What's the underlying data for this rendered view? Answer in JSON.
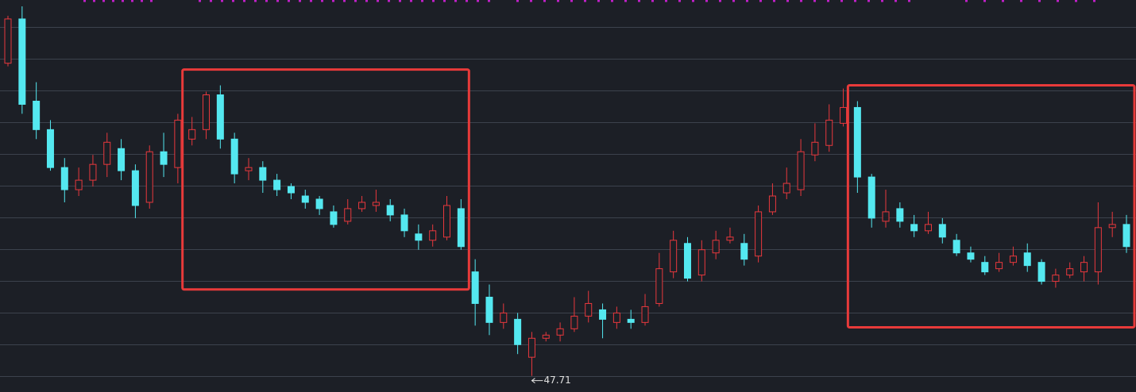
{
  "chart_data": {
    "type": "candlestick",
    "up_color": "#e8383d",
    "down_color": "#54e8f0",
    "ylim": [
      47.2,
      59.6
    ],
    "open": [
      57.6,
      59.0,
      56.4,
      55.5,
      54.3,
      53.6,
      53.9,
      54.4,
      54.9,
      54.2,
      53.2,
      54.8,
      54.3,
      55.2,
      55.5,
      56.6,
      55.2,
      54.2,
      54.3,
      53.9,
      53.7,
      53.4,
      53.3,
      52.9,
      52.6,
      53.0,
      53.1,
      53.1,
      52.8,
      52.2,
      52.0,
      52.1,
      53.0,
      51.0,
      50.2,
      49.4,
      49.5,
      48.3,
      48.9,
      49.0,
      49.2,
      49.6,
      49.8,
      49.4,
      49.5,
      49.4,
      50.0,
      51.0,
      51.9,
      50.9,
      51.6,
      52.0,
      51.9,
      51.5,
      52.9,
      53.5,
      53.6,
      54.7,
      55.0,
      55.7,
      56.2,
      54.0,
      52.6,
      53.0,
      52.5,
      52.3,
      52.5,
      52.0,
      51.6,
      51.3,
      51.1,
      51.3,
      51.6,
      51.3,
      50.7,
      50.9,
      51.0,
      51.0,
      52.4,
      52.5
    ],
    "high": [
      59.1,
      59.4,
      57.0,
      55.8,
      54.6,
      54.3,
      54.7,
      55.4,
      55.2,
      54.4,
      55.0,
      55.4,
      56.0,
      55.9,
      56.7,
      56.9,
      55.4,
      54.6,
      54.5,
      54.1,
      53.8,
      53.6,
      53.4,
      53.1,
      53.3,
      53.4,
      53.6,
      53.3,
      53.0,
      52.5,
      52.5,
      53.4,
      53.3,
      51.4,
      50.6,
      50.0,
      49.7,
      49.1,
      49.1,
      49.4,
      50.2,
      50.4,
      50.0,
      49.9,
      49.8,
      50.3,
      51.6,
      52.3,
      52.1,
      52.0,
      52.3,
      52.4,
      52.2,
      53.1,
      53.8,
      54.3,
      55.2,
      55.7,
      56.3,
      56.8,
      56.4,
      54.1,
      53.6,
      53.2,
      52.8,
      52.9,
      52.7,
      52.2,
      51.8,
      51.5,
      51.6,
      51.8,
      51.9,
      51.4,
      51.1,
      51.3,
      51.5,
      53.2,
      52.9,
      52.8
    ],
    "low": [
      57.5,
      56.0,
      55.2,
      54.2,
      53.2,
      53.4,
      53.7,
      54.0,
      53.9,
      52.7,
      53.0,
      54.0,
      53.8,
      55.0,
      55.2,
      54.9,
      53.8,
      53.9,
      53.5,
      53.4,
      53.3,
      53.0,
      52.8,
      52.4,
      52.5,
      52.9,
      52.9,
      52.6,
      52.1,
      51.7,
      51.8,
      52.0,
      51.7,
      49.3,
      49.0,
      49.2,
      48.4,
      47.71,
      48.8,
      48.8,
      49.1,
      49.4,
      48.9,
      49.2,
      49.2,
      49.3,
      49.9,
      50.8,
      50.7,
      50.7,
      51.4,
      51.9,
      51.2,
      51.3,
      52.8,
      53.3,
      53.4,
      54.5,
      54.8,
      55.6,
      53.5,
      52.4,
      52.4,
      52.4,
      52.1,
      52.2,
      51.9,
      51.5,
      51.3,
      50.9,
      51.0,
      51.2,
      51.0,
      50.6,
      50.5,
      50.8,
      50.7,
      50.6,
      52.1,
      51.6
    ],
    "close": [
      59.0,
      56.3,
      55.5,
      54.3,
      53.6,
      53.9,
      54.4,
      55.1,
      54.2,
      53.1,
      54.8,
      54.4,
      55.8,
      55.5,
      56.6,
      55.2,
      54.1,
      54.3,
      53.9,
      53.6,
      53.5,
      53.2,
      53.0,
      52.5,
      53.0,
      53.2,
      53.2,
      52.8,
      52.3,
      52.0,
      52.3,
      53.1,
      51.8,
      50.0,
      49.4,
      49.7,
      48.7,
      48.9,
      49.0,
      49.2,
      49.6,
      50.0,
      49.5,
      49.7,
      49.4,
      49.9,
      51.1,
      52.0,
      50.8,
      51.7,
      52.0,
      52.1,
      51.4,
      52.9,
      53.4,
      53.8,
      54.8,
      55.1,
      55.8,
      56.2,
      54.0,
      52.7,
      52.9,
      52.6,
      52.3,
      52.5,
      52.1,
      51.6,
      51.4,
      51.0,
      51.3,
      51.5,
      51.2,
      50.7,
      50.9,
      51.1,
      51.3,
      52.4,
      52.5,
      51.8
    ],
    "annotations": [
      {
        "text": "47.71",
        "value": 47.71
      }
    ]
  }
}
